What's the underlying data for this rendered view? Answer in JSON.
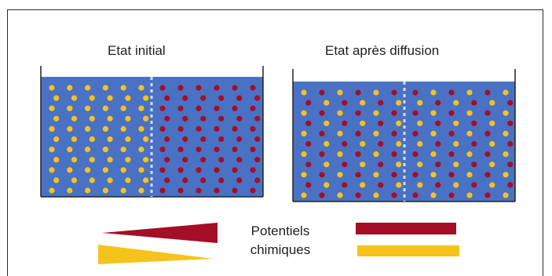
{
  "figure": {
    "title_initial": "Etat initial",
    "title_diffusion": "Etat après diffusion",
    "legend_line1": "Potentiels",
    "legend_line2": "chimiques"
  },
  "colors": {
    "water": "#4a72c4",
    "water_edge": "#3a5fae",
    "container_line": "#222222",
    "membrane": "#d7dbe6",
    "yellow": "#f6c21c",
    "red": "#a40e26"
  },
  "icons": {
    "red_wedge": "red-potential-wedge-icon",
    "yellow_wedge": "yellow-potential-wedge-icon",
    "red_bar": "red-potential-bar-icon",
    "yellow_bar": "yellow-potential-bar-icon"
  }
}
